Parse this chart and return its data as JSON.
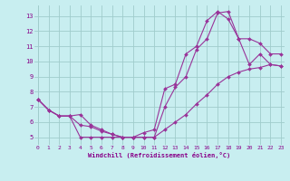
{
  "xlabel": "Windchill (Refroidissement éolien,°C)",
  "bg_color": "#c8eef0",
  "grid_color": "#a0cccc",
  "line_color": "#993399",
  "line1_x": [
    0,
    1,
    2,
    3,
    4,
    5,
    6,
    7,
    8,
    9,
    10,
    11,
    12,
    13,
    14,
    15,
    16,
    17,
    18,
    19,
    20,
    21,
    22,
    23
  ],
  "line1_y": [
    7.5,
    6.8,
    6.4,
    6.4,
    5.8,
    5.7,
    5.4,
    5.2,
    5.0,
    5.0,
    5.0,
    5.0,
    5.5,
    6.0,
    6.5,
    7.2,
    7.8,
    8.5,
    9.0,
    9.3,
    9.5,
    9.6,
    9.8,
    9.7
  ],
  "line2_x": [
    0,
    1,
    2,
    3,
    4,
    5,
    6,
    7,
    8,
    9,
    10,
    11,
    12,
    13,
    14,
    15,
    16,
    17,
    18,
    19,
    20,
    21,
    22,
    23
  ],
  "line2_y": [
    7.5,
    6.8,
    6.4,
    6.4,
    5.0,
    5.0,
    5.0,
    5.0,
    5.0,
    5.0,
    5.0,
    5.0,
    7.0,
    8.3,
    9.0,
    10.8,
    11.5,
    13.2,
    13.3,
    11.5,
    11.5,
    11.2,
    10.5,
    10.5
  ],
  "line3_x": [
    0,
    1,
    2,
    3,
    4,
    5,
    6,
    7,
    8,
    9,
    10,
    11,
    12,
    13,
    14,
    15,
    16,
    17,
    18,
    19,
    20,
    21,
    22,
    23
  ],
  "line3_y": [
    7.5,
    6.8,
    6.4,
    6.4,
    6.5,
    5.8,
    5.5,
    5.2,
    5.0,
    5.0,
    5.3,
    5.5,
    8.2,
    8.5,
    10.5,
    11.0,
    12.7,
    13.3,
    12.8,
    11.5,
    9.8,
    10.5,
    9.8,
    9.7
  ],
  "ylim": [
    4.5,
    13.7
  ],
  "xlim": [
    -0.3,
    23.3
  ],
  "yticks": [
    5,
    6,
    7,
    8,
    9,
    10,
    11,
    12,
    13
  ],
  "xticks": [
    0,
    1,
    2,
    3,
    4,
    5,
    6,
    7,
    8,
    9,
    10,
    11,
    12,
    13,
    14,
    15,
    16,
    17,
    18,
    19,
    20,
    21,
    22,
    23
  ],
  "tick_color": "#880088",
  "xlabel_color": "#880088"
}
